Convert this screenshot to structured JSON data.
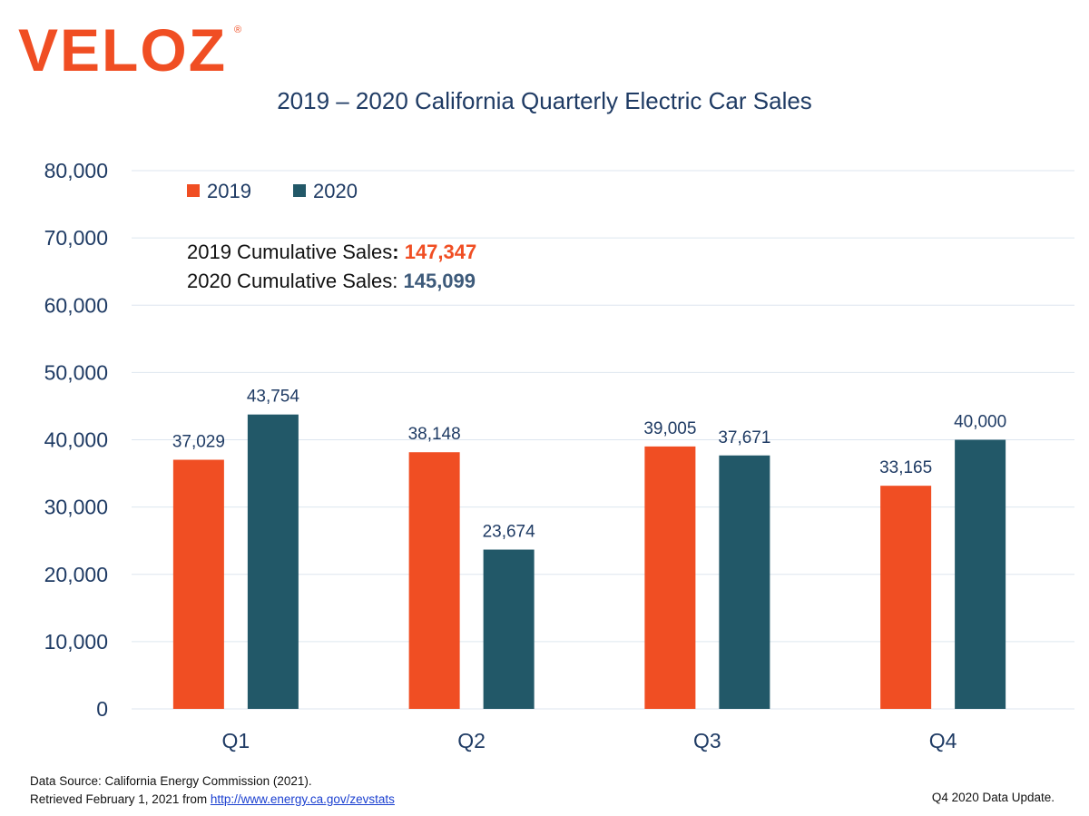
{
  "logo": {
    "text": "VELOZ",
    "mark": "®"
  },
  "colors": {
    "s2019": "#f04e23",
    "s2020": "#225868",
    "text": "#1f3b64",
    "grid": "#dde6ef"
  },
  "chart_data": {
    "type": "bar",
    "title": "2019 – 2020 California Quarterly Electric Car Sales",
    "categories": [
      "Q1",
      "Q2",
      "Q3",
      "Q4"
    ],
    "series": [
      {
        "name": "2019",
        "values": [
          37029,
          38148,
          39005,
          33165
        ],
        "labels": [
          "37,029",
          "38,148",
          "39,005",
          "33,165"
        ]
      },
      {
        "name": "2020",
        "values": [
          43754,
          23674,
          37671,
          40000
        ],
        "labels": [
          "43,754",
          "23,674",
          "37,671",
          "40,000"
        ]
      }
    ],
    "ylim": [
      0,
      80000
    ],
    "yticks": [
      0,
      10000,
      20000,
      30000,
      40000,
      50000,
      60000,
      70000,
      80000
    ],
    "ytick_labels": [
      "0",
      "10,000",
      "20,000",
      "30,000",
      "40,000",
      "50,000",
      "60,000",
      "70,000",
      "80,000"
    ],
    "legend_position": "top-left",
    "annotations": [
      {
        "label": "2019 Cumulative Sales",
        "sep": ":",
        "value": "147,347"
      },
      {
        "label": "2020 Cumulative Sales",
        "sep": ":",
        "value": "145,099"
      }
    ]
  },
  "footer": {
    "source_line1": "Data Source: California Energy Commission (2021).",
    "source_line2_prefix": "Retrieved February 1, 2021 from ",
    "source_link": "http://www.energy.ca.gov/zevstats ",
    "update_note": "Q4 2020 Data Update."
  }
}
